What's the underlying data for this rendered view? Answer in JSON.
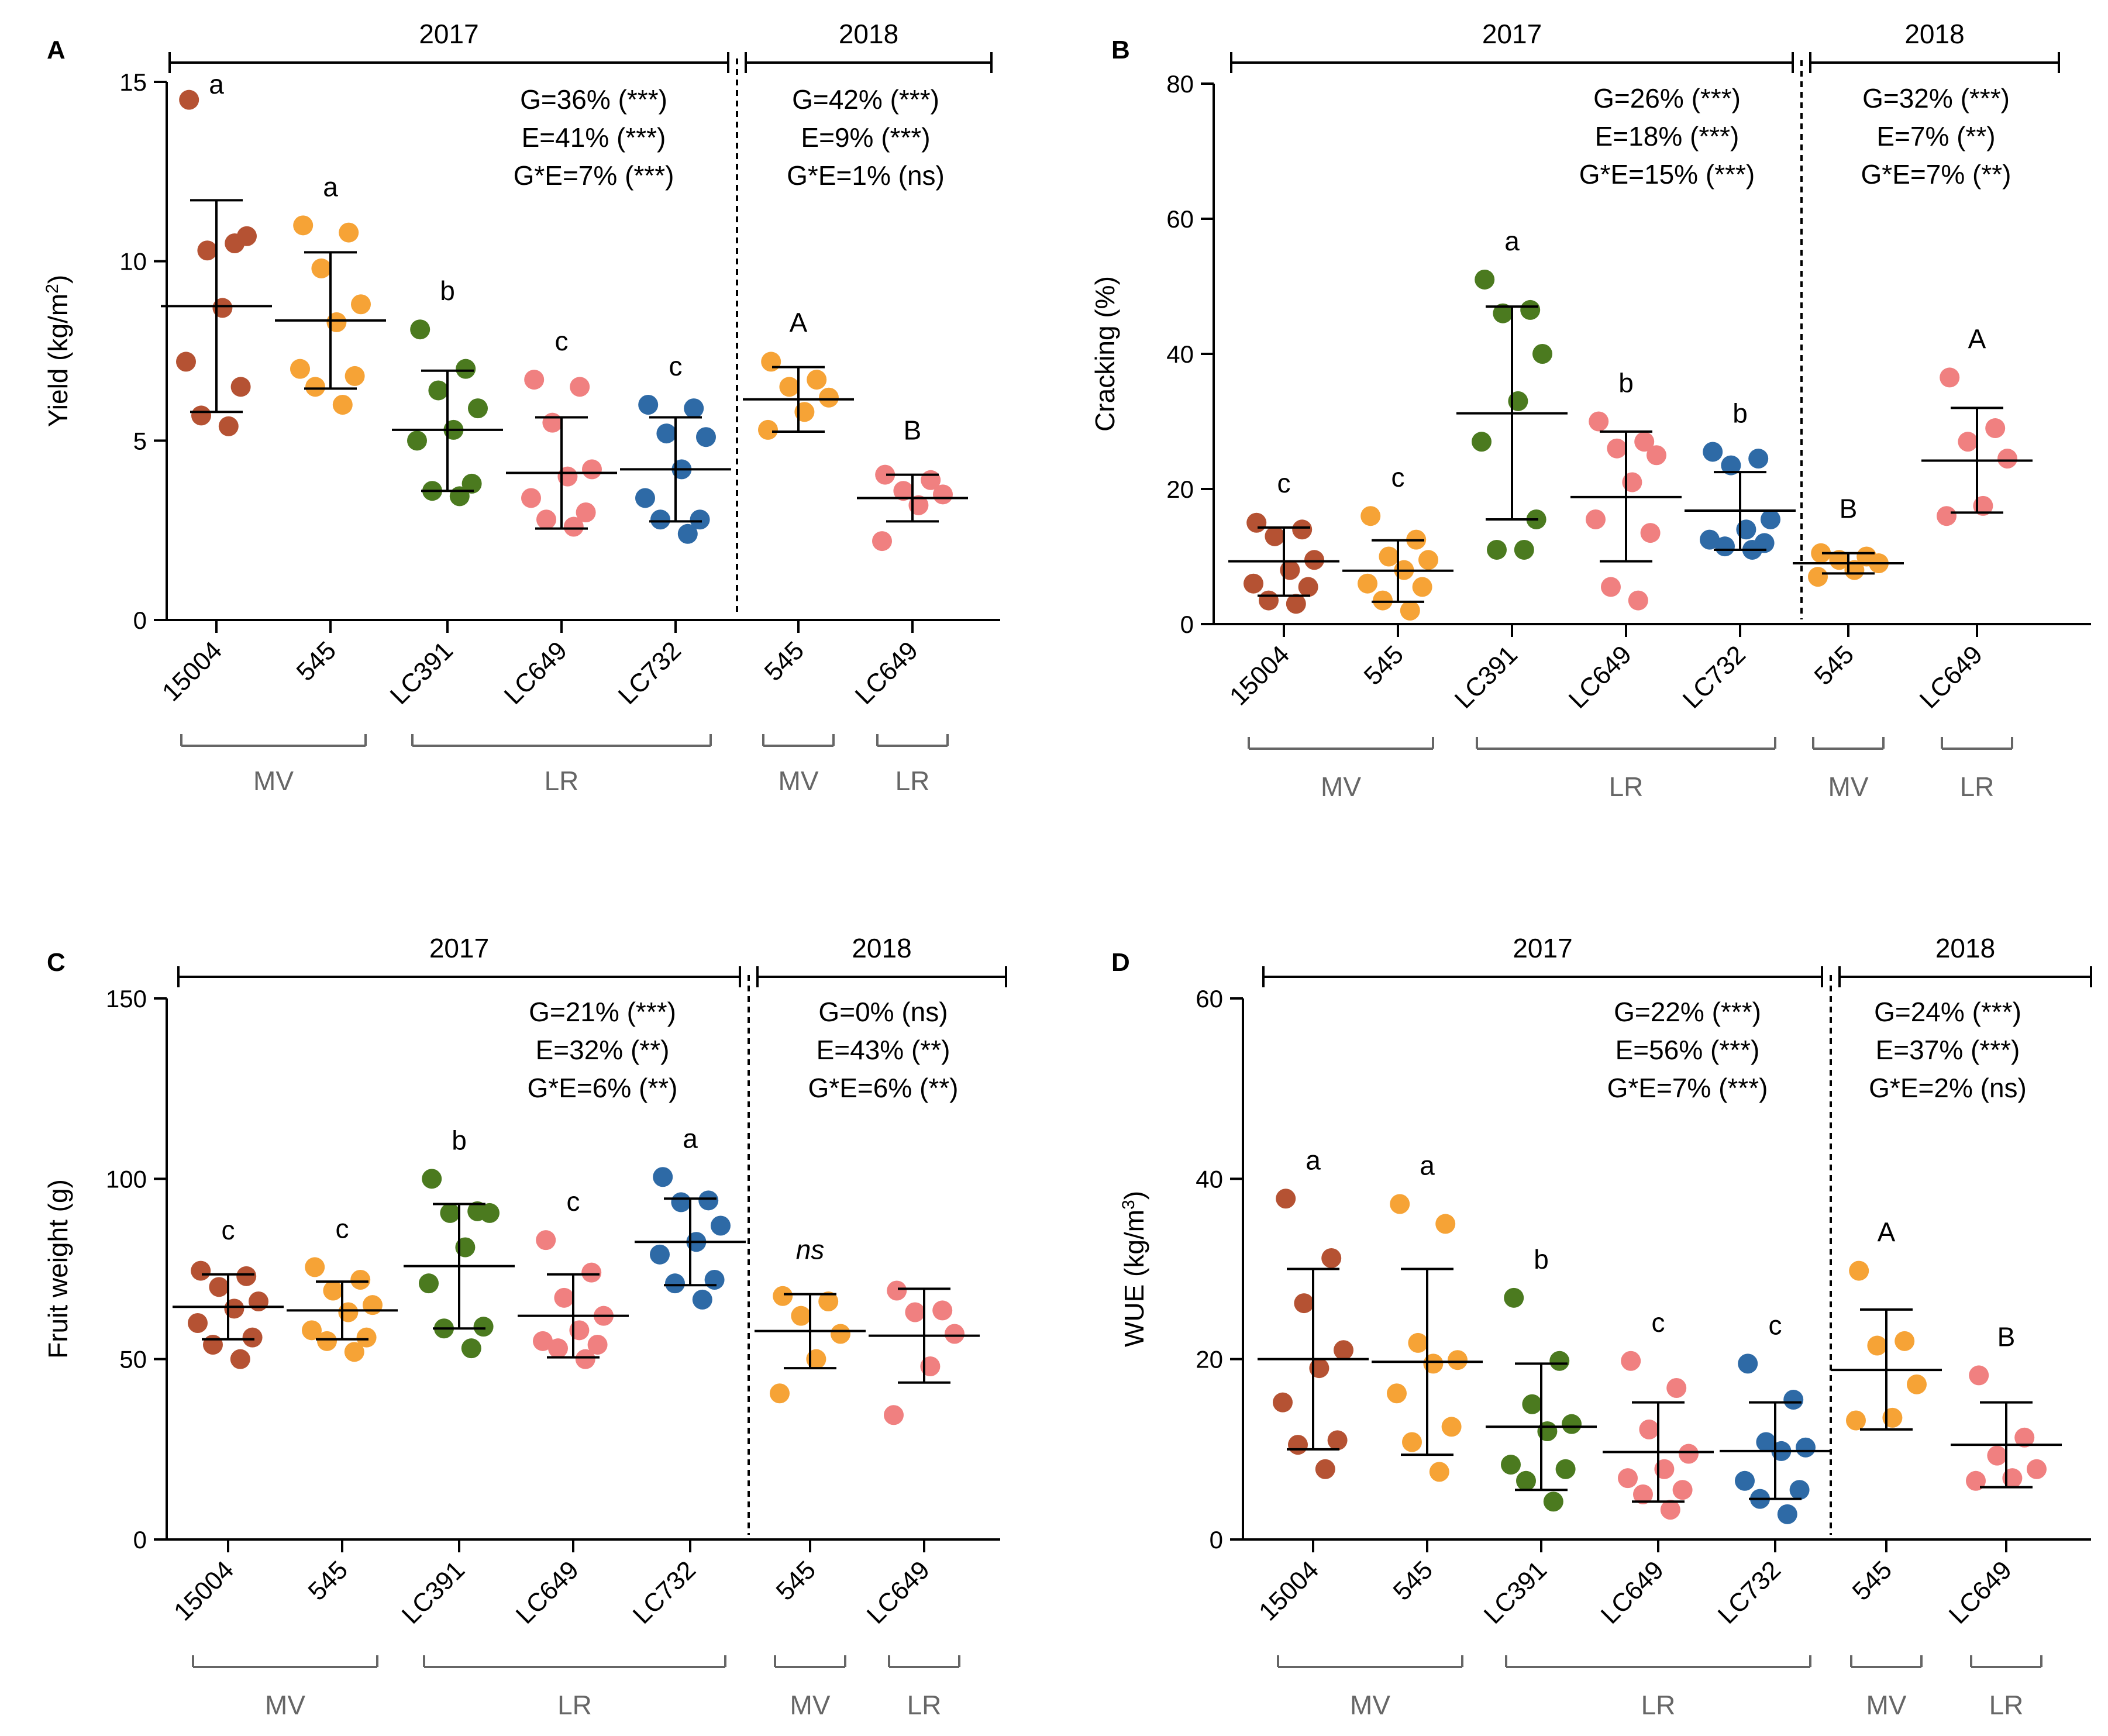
{
  "colors": {
    "15004": "#b55233",
    "545": "#f6a336",
    "LC391": "#4b7a1f",
    "LC649": "#f08080",
    "LC732": "#2e6aa6",
    "group_bracket": "#666666"
  },
  "chart_data": [
    {
      "type": "scatter",
      "panel": "A",
      "ylabel": "Yield (kg/m²)",
      "ylabel_base": "Yield (kg/m",
      "ylabel_sup": "2",
      "ylabel_end": ")",
      "ylim": [
        0,
        15
      ],
      "yticks": [
        "0",
        "5",
        "10",
        "15"
      ],
      "years": [
        {
          "label": "2017",
          "stats": [
            "G=36% (***)",
            "E=41% (***)",
            "G*E=7% (***)"
          ]
        },
        {
          "label": "2018",
          "stats": [
            "G=42% (***)",
            "E=9% (***)",
            "G*E=1% (ns)"
          ]
        }
      ],
      "groups": [
        {
          "label": "MV",
          "from": 0,
          "to": 1
        },
        {
          "label": "LR",
          "from": 2,
          "to": 4
        },
        {
          "label": "MV",
          "from": 5,
          "to": 5
        },
        {
          "label": "LR",
          "from": 6,
          "to": 6
        }
      ],
      "series": [
        {
          "category": "15004",
          "color_key": "15004",
          "sig": "a",
          "mean": 8.75,
          "sd_low": 5.8,
          "sd_high": 11.7,
          "points": [
            14.5,
            10.5,
            10.3,
            10.7,
            8.7,
            7.2,
            6.5,
            5.7,
            5.4
          ]
        },
        {
          "category": "545",
          "color_key": "545",
          "sig": "a",
          "mean": 8.35,
          "sd_low": 6.45,
          "sd_high": 10.25,
          "points": [
            11.0,
            10.8,
            9.8,
            8.8,
            8.3,
            7.0,
            6.8,
            6.5,
            6.0
          ]
        },
        {
          "category": "LC391",
          "color_key": "LC391",
          "sig": "b",
          "mean": 5.3,
          "sd_low": 3.6,
          "sd_high": 6.95,
          "points": [
            8.1,
            7.0,
            6.4,
            5.9,
            5.3,
            5.0,
            3.8,
            3.6,
            3.45
          ]
        },
        {
          "category": "LC649",
          "color_key": "LC649",
          "sig": "c",
          "mean": 4.1,
          "sd_low": 2.55,
          "sd_high": 5.65,
          "points": [
            6.7,
            6.5,
            5.5,
            4.2,
            4.0,
            3.4,
            3.0,
            2.8,
            2.6
          ]
        },
        {
          "category": "LC732",
          "color_key": "LC732",
          "sig": "c",
          "mean": 4.2,
          "sd_low": 2.75,
          "sd_high": 5.65,
          "points": [
            6.0,
            5.9,
            5.2,
            5.1,
            4.2,
            3.4,
            2.8,
            2.8,
            2.4
          ]
        },
        {
          "category": "545",
          "color_key": "545",
          "sig": "A",
          "mean": 6.15,
          "sd_low": 5.25,
          "sd_high": 7.05,
          "points": [
            7.2,
            6.7,
            6.5,
            6.2,
            5.8,
            5.3
          ]
        },
        {
          "category": "LC649",
          "color_key": "LC649",
          "sig": "B",
          "mean": 3.4,
          "sd_low": 2.75,
          "sd_high": 4.05,
          "points": [
            4.05,
            3.9,
            3.6,
            3.5,
            3.2,
            2.2
          ]
        }
      ]
    },
    {
      "type": "scatter",
      "panel": "B",
      "ylabel": "Cracking  (%)",
      "ylabel_base": "Cracking  (%)",
      "ylabel_sup": "",
      "ylabel_end": "",
      "ylim": [
        0,
        80
      ],
      "yticks": [
        "0",
        "20",
        "40",
        "60",
        "80"
      ],
      "years": [
        {
          "label": "2017",
          "stats": [
            "G=26% (***)",
            "E=18% (***)",
            "G*E=15% (***)"
          ]
        },
        {
          "label": "2018",
          "stats": [
            "G=32% (***)",
            "E=7% (**)",
            "G*E=7% (**)"
          ]
        }
      ],
      "groups": [
        {
          "label": "MV",
          "from": 0,
          "to": 1
        },
        {
          "label": "LR",
          "from": 2,
          "to": 4
        },
        {
          "label": "MV",
          "from": 5,
          "to": 5
        },
        {
          "label": "LR",
          "from": 6,
          "to": 6
        }
      ],
      "series": [
        {
          "category": "15004",
          "color_key": "15004",
          "sig": "c",
          "mean": 9.3,
          "sd_low": 4.2,
          "sd_high": 14.3,
          "points": [
            15.0,
            14.0,
            13.0,
            9.5,
            8.0,
            6.0,
            5.5,
            3.5,
            3.0
          ]
        },
        {
          "category": "545",
          "color_key": "545",
          "sig": "c",
          "mean": 7.9,
          "sd_low": 3.3,
          "sd_high": 12.4,
          "points": [
            16.0,
            12.5,
            10.0,
            9.5,
            8.0,
            6.0,
            5.5,
            3.5,
            2.0
          ]
        },
        {
          "category": "LC391",
          "color_key": "LC391",
          "sig": "a",
          "mean": 31.2,
          "sd_low": 15.5,
          "sd_high": 47.0,
          "points": [
            51.0,
            46.5,
            46.0,
            40.0,
            33.0,
            27.0,
            15.5,
            11.0,
            11.0
          ]
        },
        {
          "category": "LC649",
          "color_key": "LC649",
          "sig": "b",
          "mean": 18.8,
          "sd_low": 9.3,
          "sd_high": 28.5,
          "points": [
            30.0,
            27.0,
            26.0,
            25.0,
            21.0,
            15.5,
            13.5,
            5.5,
            3.5
          ]
        },
        {
          "category": "LC732",
          "color_key": "LC732",
          "sig": "b",
          "mean": 16.8,
          "sd_low": 11.0,
          "sd_high": 22.5,
          "points": [
            25.5,
            24.5,
            23.5,
            15.5,
            14.0,
            12.5,
            12.0,
            11.5,
            11.0
          ]
        },
        {
          "category": "545",
          "color_key": "545",
          "sig": "B",
          "mean": 9.0,
          "sd_low": 7.5,
          "sd_high": 10.5,
          "points": [
            10.5,
            10.0,
            9.5,
            9.0,
            8.0,
            7.0
          ]
        },
        {
          "category": "LC649",
          "color_key": "LC649",
          "sig": "A",
          "mean": 24.2,
          "sd_low": 16.5,
          "sd_high": 32.0,
          "points": [
            36.5,
            29.0,
            27.0,
            24.5,
            17.5,
            16.0
          ]
        }
      ]
    },
    {
      "type": "scatter",
      "panel": "C",
      "ylabel": "Fruit weight  (g)",
      "ylabel_base": "Fruit weight  (g)",
      "ylabel_sup": "",
      "ylabel_end": "",
      "ylim": [
        0,
        150
      ],
      "yticks": [
        "0",
        "50",
        "100",
        "150"
      ],
      "years": [
        {
          "label": "2017",
          "stats": [
            "G=21% (***)",
            "E=32% (**)",
            "G*E=6% (**)"
          ]
        },
        {
          "label": "2018",
          "stats": [
            "G=0% (ns)",
            "E=43% (**)",
            "G*E=6% (**)"
          ]
        }
      ],
      "groups": [
        {
          "label": "MV",
          "from": 0,
          "to": 1
        },
        {
          "label": "LR",
          "from": 2,
          "to": 4
        },
        {
          "label": "MV",
          "from": 5,
          "to": 5
        },
        {
          "label": "LR",
          "from": 6,
          "to": 6
        }
      ],
      "series": [
        {
          "category": "15004",
          "color_key": "15004",
          "sig": "c",
          "mean": 64.5,
          "sd_low": 55.5,
          "sd_high": 73.5,
          "points": [
            74.5,
            73.0,
            70.0,
            66.0,
            64.0,
            60.0,
            56.0,
            54.0,
            50.0
          ]
        },
        {
          "category": "545",
          "color_key": "545",
          "sig": "c",
          "mean": 63.5,
          "sd_low": 55.5,
          "sd_high": 71.5,
          "points": [
            75.5,
            72.0,
            69.0,
            65.0,
            63.0,
            58.0,
            56.0,
            55.0,
            52.0
          ]
        },
        {
          "category": "LC391",
          "color_key": "LC391",
          "sig": "b",
          "mean": 75.8,
          "sd_low": 58.5,
          "sd_high": 93.0,
          "points": [
            100.0,
            91.0,
            90.5,
            90.5,
            81.0,
            71.0,
            59.0,
            58.5,
            53.0
          ]
        },
        {
          "category": "LC649",
          "color_key": "LC649",
          "sig": "c",
          "mean": 62.0,
          "sd_low": 50.5,
          "sd_high": 73.5,
          "points": [
            83.0,
            74.0,
            67.0,
            62.0,
            58.0,
            55.0,
            54.0,
            53.0,
            50.0
          ]
        },
        {
          "category": "LC732",
          "color_key": "LC732",
          "sig": "a",
          "mean": 82.5,
          "sd_low": 70.5,
          "sd_high": 94.5,
          "points": [
            100.5,
            94.0,
            93.5,
            87.0,
            82.5,
            79.0,
            72.0,
            71.0,
            66.5
          ]
        },
        {
          "category": "545",
          "color_key": "545",
          "sig": "ns",
          "sig_italic": true,
          "mean": 57.8,
          "sd_low": 47.5,
          "sd_high": 68.0,
          "points": [
            67.5,
            66.0,
            62.0,
            57.0,
            50.0,
            40.5
          ]
        },
        {
          "category": "LC649",
          "color_key": "LC649",
          "sig": "",
          "mean": 56.5,
          "sd_low": 43.5,
          "sd_high": 69.5,
          "points": [
            69.0,
            63.5,
            63.0,
            57.0,
            48.0,
            34.5
          ]
        }
      ]
    },
    {
      "type": "scatter",
      "panel": "D",
      "ylabel": "WUE (kg/m³)",
      "ylabel_base": "WUE (kg/m",
      "ylabel_sup": "3",
      "ylabel_end": ")",
      "ylim": [
        0,
        60
      ],
      "yticks": [
        "0",
        "20",
        "40",
        "60"
      ],
      "years": [
        {
          "label": "2017",
          "stats": [
            "G=22% (***)",
            "E=56% (***)",
            "G*E=7% (***)"
          ]
        },
        {
          "label": "2018",
          "stats": [
            "G=24% (***)",
            "E=37% (***)",
            "G*E=2% (ns)"
          ]
        }
      ],
      "groups": [
        {
          "label": "MV",
          "from": 0,
          "to": 1
        },
        {
          "label": "LR",
          "from": 2,
          "to": 4
        },
        {
          "label": "MV",
          "from": 5,
          "to": 5
        },
        {
          "label": "LR",
          "from": 6,
          "to": 6
        }
      ],
      "series": [
        {
          "category": "15004",
          "color_key": "15004",
          "sig": "a",
          "mean": 20.0,
          "sd_low": 10.0,
          "sd_high": 30.0,
          "points": [
            37.8,
            31.2,
            26.2,
            21.0,
            19.0,
            15.2,
            11.0,
            10.5,
            7.8
          ]
        },
        {
          "category": "545",
          "color_key": "545",
          "sig": "a",
          "mean": 19.7,
          "sd_low": 9.4,
          "sd_high": 30.0,
          "points": [
            37.2,
            35.0,
            21.8,
            19.9,
            19.5,
            16.2,
            12.5,
            10.8,
            7.5
          ]
        },
        {
          "category": "LC391",
          "color_key": "LC391",
          "sig": "b",
          "mean": 12.5,
          "sd_low": 5.5,
          "sd_high": 19.5,
          "points": [
            26.8,
            19.8,
            15.0,
            12.8,
            12.0,
            8.3,
            7.8,
            6.5,
            4.2
          ]
        },
        {
          "category": "LC649",
          "color_key": "LC649",
          "sig": "c",
          "mean": 9.7,
          "sd_low": 4.2,
          "sd_high": 15.2,
          "points": [
            19.8,
            16.8,
            12.2,
            9.5,
            7.8,
            6.8,
            5.5,
            5.0,
            3.3
          ]
        },
        {
          "category": "LC732",
          "color_key": "LC732",
          "sig": "c",
          "mean": 9.8,
          "sd_low": 4.5,
          "sd_high": 15.2,
          "points": [
            19.5,
            15.5,
            10.8,
            10.2,
            9.8,
            6.5,
            5.5,
            4.5,
            2.8
          ]
        },
        {
          "category": "545",
          "color_key": "545",
          "sig": "A",
          "mean": 18.8,
          "sd_low": 12.2,
          "sd_high": 25.5,
          "points": [
            29.8,
            22.0,
            21.5,
            17.2,
            13.5,
            13.2
          ]
        },
        {
          "category": "LC649",
          "color_key": "LC649",
          "sig": "B",
          "mean": 10.5,
          "sd_low": 5.8,
          "sd_high": 15.2,
          "points": [
            18.2,
            11.3,
            9.3,
            7.8,
            6.8,
            6.5
          ]
        }
      ]
    }
  ]
}
